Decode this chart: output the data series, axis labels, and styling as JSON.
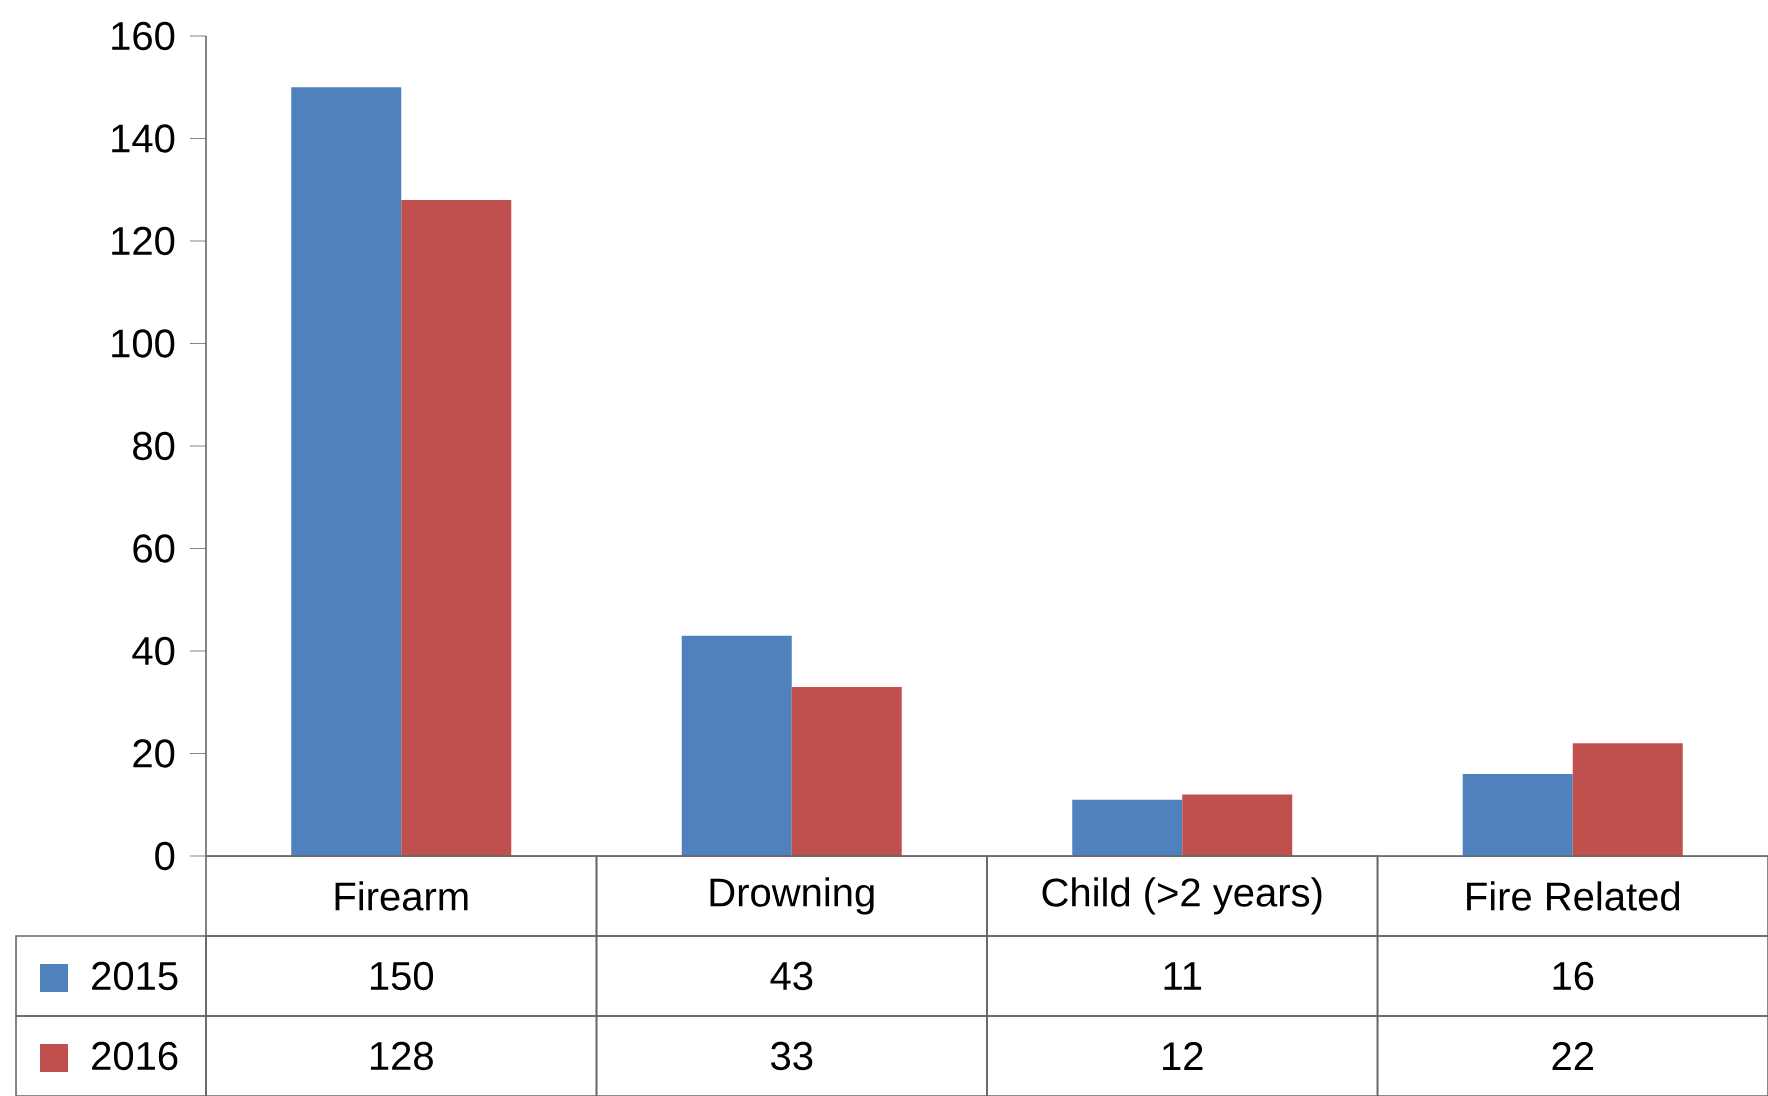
{
  "chart_data": {
    "type": "bar",
    "categories": [
      "Firearm",
      "Drowning",
      "Child (>2 years)",
      "Fire Related"
    ],
    "series": [
      {
        "name": "2015",
        "color": "#4f81bd",
        "values": [
          150,
          43,
          11,
          16
        ]
      },
      {
        "name": "2016",
        "color": "#c0504d",
        "values": [
          128,
          33,
          12,
          22
        ]
      }
    ],
    "ylim": [
      0,
      160
    ],
    "yticks": [
      0,
      20,
      40,
      60,
      80,
      100,
      120,
      140,
      160
    ],
    "data_labels": true,
    "legend": "bottom",
    "grid": false
  }
}
